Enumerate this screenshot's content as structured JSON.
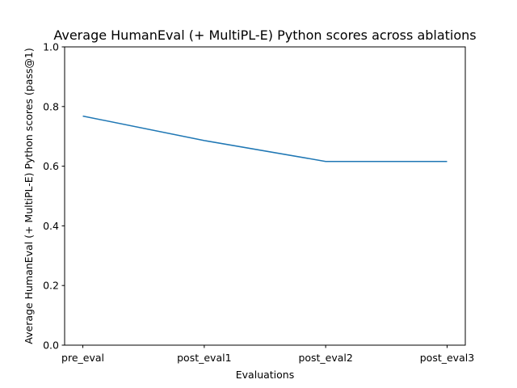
{
  "chart_data": {
    "type": "line",
    "title": "Average HumanEval (+ MultiPL-E) Python scores across ablations",
    "xlabel": "Evaluations",
    "ylabel": "Average HumanEval (+ MultiPL-E) Python scores (pass@1)",
    "categories": [
      "pre_eval",
      "post_eval1",
      "post_eval2",
      "post_eval3"
    ],
    "series": [
      {
        "values": [
          0.768,
          0.686,
          0.616,
          0.616
        ],
        "color": "#1f77b4"
      }
    ],
    "ylim": [
      0,
      1.0
    ],
    "yticks": [
      "0.0",
      "0.2",
      "0.4",
      "0.6",
      "0.8",
      "1.0"
    ],
    "grid": false,
    "legend": false
  }
}
